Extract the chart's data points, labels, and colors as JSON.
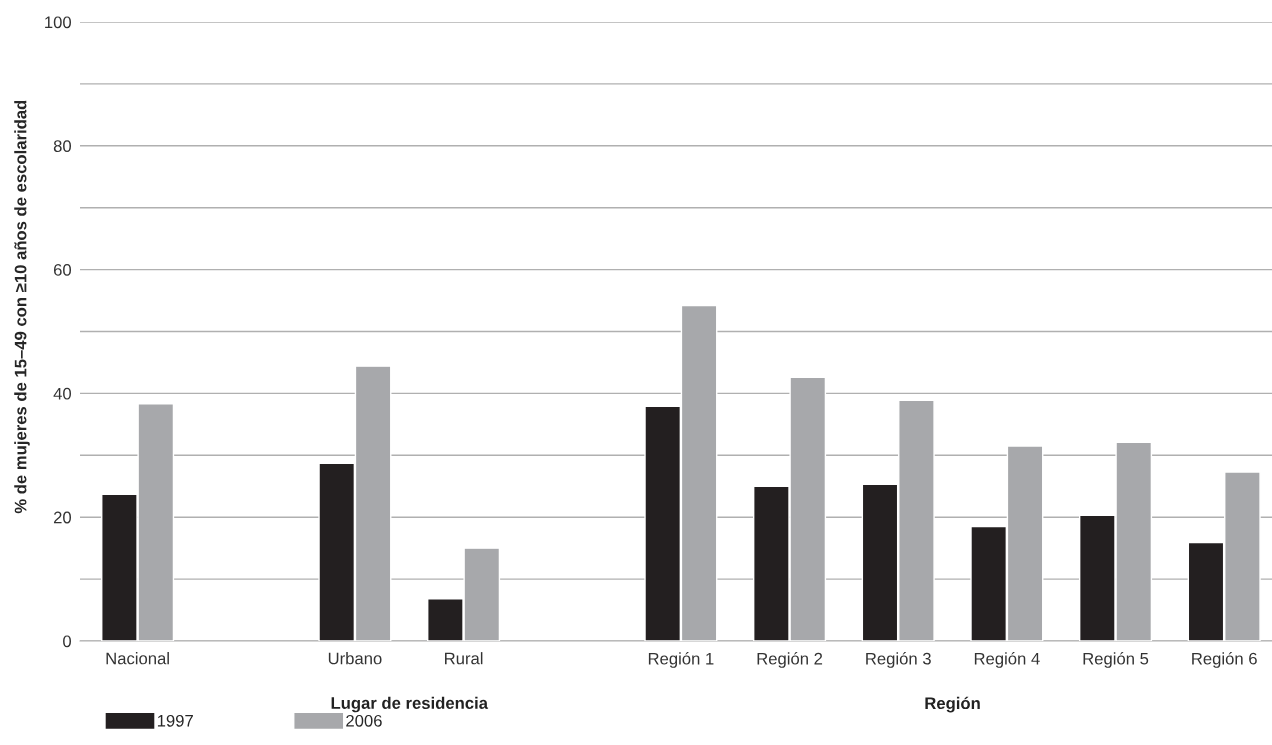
{
  "chart_data": {
    "type": "bar",
    "ylabel": "% de mujeres de 15–49 con ≥10 años de escolaridad",
    "categories": [
      "Nacional",
      null,
      "Urbano",
      "Rural",
      null,
      "Región 1",
      "Región 2",
      "Región 3",
      "Región 4",
      "Región 5",
      "Región 6"
    ],
    "series": [
      {
        "name": "1997",
        "color": "#231f20",
        "values": [
          23.7,
          null,
          28.7,
          6.8,
          null,
          37.9,
          25.0,
          25.3,
          18.5,
          20.3,
          15.9
        ]
      },
      {
        "name": "2006",
        "color": "#a7a8ab",
        "values": [
          38.3,
          null,
          44.4,
          15.0,
          null,
          54.2,
          42.6,
          38.9,
          31.5,
          32.1,
          27.3
        ]
      }
    ],
    "ylim": [
      0,
      100
    ],
    "yticks": [
      0,
      {
        "value": 10,
        "label": null
      },
      20,
      {
        "value": 30,
        "label": null
      },
      40,
      {
        "value": 50,
        "label": null
      },
      60,
      {
        "value": 70,
        "label": null
      },
      80,
      {
        "value": 90,
        "label": null
      },
      100
    ],
    "annotations": [
      "Lugar de residencia",
      "Región"
    ],
    "grid": "y",
    "legend": "bottom left"
  }
}
